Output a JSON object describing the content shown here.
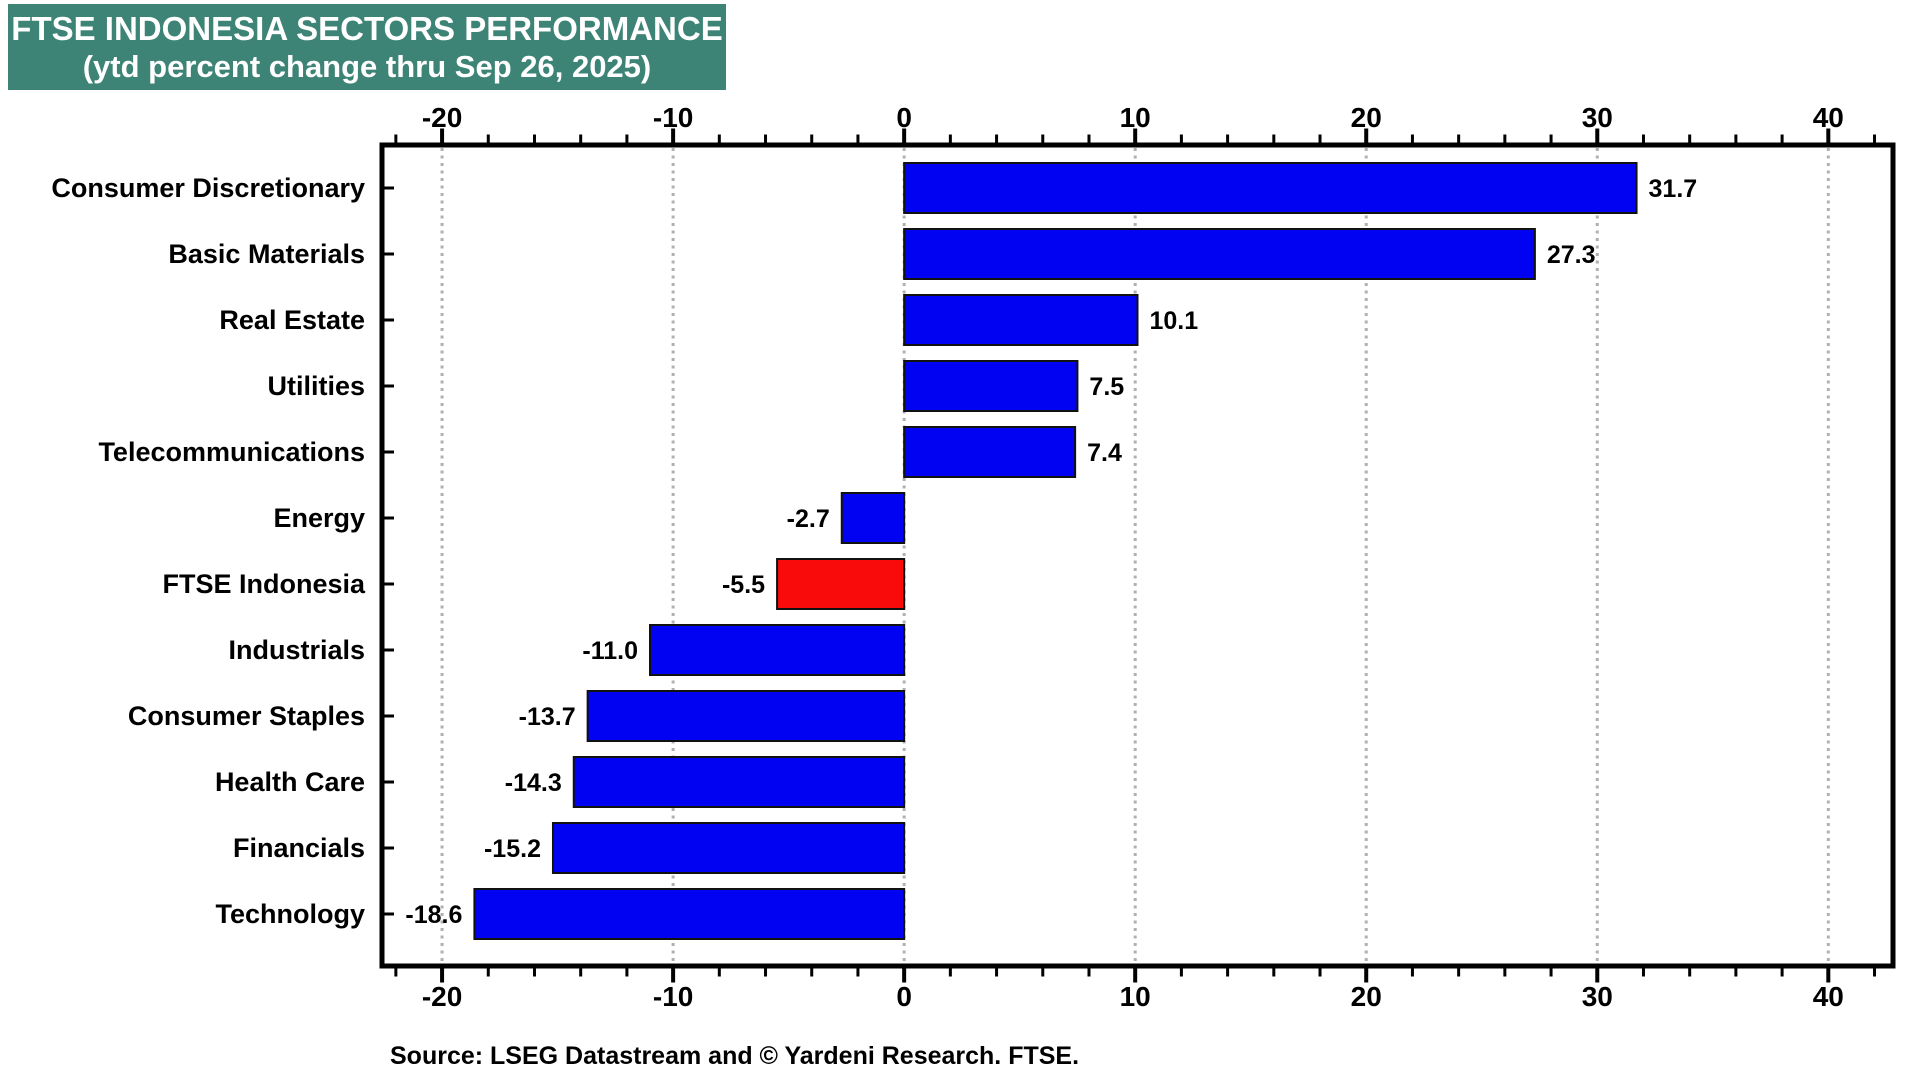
{
  "header": {
    "title": "FTSE INDONESIA SECTORS PERFORMANCE",
    "subtitle": "(ytd percent change thru Sep 26, 2025)",
    "bg_color": "#3d8477",
    "text_color": "#ffffff"
  },
  "chart_data": {
    "type": "bar",
    "orientation": "horizontal",
    "title": "FTSE INDONESIA SECTORS PERFORMANCE",
    "subtitle": "(ytd percent change thru Sep 26, 2025)",
    "categories": [
      "Consumer Discretionary",
      "Basic Materials",
      "Real Estate",
      "Utilities",
      "Telecommunications",
      "Energy",
      "FTSE Indonesia",
      "Industrials",
      "Consumer Staples",
      "Health Care",
      "Financials",
      "Technology"
    ],
    "values": [
      31.7,
      27.3,
      10.1,
      7.5,
      7.4,
      -2.7,
      -5.5,
      -11.0,
      -13.7,
      -14.3,
      -15.2,
      -18.6
    ],
    "highlight_category": "FTSE Indonesia",
    "bar_color_default": "#0202f2",
    "bar_color_highlight": "#f90b0b",
    "bar_border_color": "#111111",
    "value_label_decimals": 1,
    "xlabel": "",
    "ylabel": "",
    "xlim": [
      -22.6,
      42.8
    ],
    "major_ticks": [
      -20,
      -10,
      0,
      10,
      20,
      30,
      40
    ],
    "minor_tick_step": 2,
    "grid": true,
    "gridline_color": "#b0b0b0",
    "gridline_style": "dotted",
    "axis_color": "#000000",
    "legend": "none"
  },
  "footer": {
    "source": "Source: LSEG Datastream and © Yardeni Research. FTSE."
  }
}
